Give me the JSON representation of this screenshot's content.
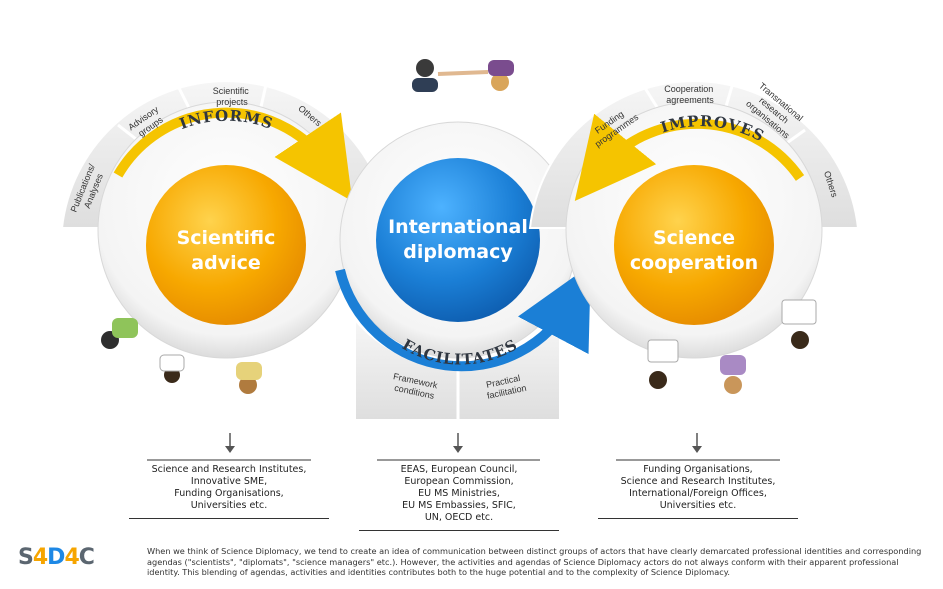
{
  "circles": {
    "left": {
      "title_line1": "Scientific",
      "title_line2": "advice",
      "verb": "INFORMS",
      "segments": [
        "Publications/",
        "Analyses",
        "Advisory",
        "groups",
        "Scientific",
        "projects",
        "Others"
      ]
    },
    "middle": {
      "title_line1": "International",
      "title_line2": "diplomacy",
      "verb": "FACILITATES",
      "segments": [
        "Framework",
        "conditions",
        "Practical",
        "facilitation"
      ]
    },
    "right": {
      "title_line1": "Science",
      "title_line2": "cooperation",
      "verb": "IMPROVES",
      "segments": [
        "Funding",
        "programmes",
        "Cooperation",
        "agreements",
        "Transnational",
        "research",
        "organisations",
        "Others"
      ]
    }
  },
  "actors": {
    "left": "Science and Research Institutes,\nInnovative SME,\nFunding Organisations,\nUniversities etc.",
    "middle": "EEAS, European Council,\nEuropean Commission,\nEU MS Ministries,\nEU MS Embassies, SFIC,\nUN, OECD etc.",
    "right": "Funding Organisations,\nScience and Research Institutes,\nInternational/Foreign Offices,\nUniversities etc."
  },
  "logo": {
    "p1": "S",
    "p2": "4",
    "p3": "D",
    "p4": "4",
    "p5": "C"
  },
  "caption": "When we think of Science Diplomacy, we tend to create an idea of communication between distinct groups of actors that have clearly demarcated professional identities and corresponding agendas (\"scientists\", \"diplomats\", \"science managers\" etc.). However, the activities and agendas of Science Diplomacy actors do not always conform with their apparent professional identity. This blending of agendas, activities and identities contributes both to the huge potential and to the complexity of Science Diplomacy.",
  "colors": {
    "orange": "#f7a800",
    "blue": "#1b7fd6",
    "ring": "#f2f2f2",
    "segment": "#e9e9e9",
    "yellow_arrow": "#f5c400"
  }
}
